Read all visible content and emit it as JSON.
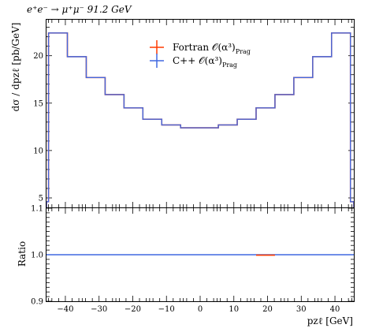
{
  "chart_data": [
    {
      "type": "line",
      "title": "e⁺e⁻ → μ⁺μ⁻ 91.2 GeV",
      "ylabel": "dσ / dpzℓ [pb/GeV]",
      "xlabel": "",
      "xlim": [
        -45.6,
        45.6
      ],
      "ylim": [
        4,
        23.8
      ],
      "yticks": [
        5,
        10,
        15,
        20
      ],
      "legend_position": "top-center",
      "x_bin_edges": [
        -45.6,
        -45.0,
        -39.4,
        -33.8,
        -28.2,
        -22.6,
        -17.0,
        -11.4,
        -5.8,
        -0.2,
        5.4,
        11.0,
        16.6,
        22.2,
        27.8,
        33.4,
        39.0,
        44.6,
        45.6
      ],
      "series": [
        {
          "name": "Fortran 𝒪(α³)Prag",
          "color": "#ff3b00",
          "values": [
            4.6,
            22.4,
            19.9,
            17.7,
            15.9,
            14.5,
            13.3,
            12.7,
            12.4,
            12.4,
            12.7,
            13.3,
            14.5,
            15.9,
            17.7,
            19.9,
            22.4,
            4.6
          ]
        },
        {
          "name": "C++ 𝒪(α³)Prag",
          "color": "#4169e1",
          "values": [
            4.6,
            22.4,
            19.9,
            17.7,
            15.9,
            14.5,
            13.3,
            12.7,
            12.4,
            12.4,
            12.7,
            13.3,
            14.5,
            15.9,
            17.7,
            19.9,
            22.4,
            4.6
          ]
        }
      ]
    },
    {
      "type": "line",
      "ylabel": "Ratio",
      "xlabel": "pzℓ [GeV]",
      "xlim": [
        -45.6,
        45.6
      ],
      "ylim": [
        0.9,
        1.1
      ],
      "yticks": [
        0.9,
        1.0,
        1.1
      ],
      "xticks": [
        -40,
        -30,
        -20,
        -10,
        0,
        10,
        20,
        30,
        40
      ],
      "series": [
        {
          "name": "Fortran 𝒪(α³)Prag",
          "color": "#ff3b00",
          "x_bin_edges": [
            16.6,
            22.2
          ],
          "values": [
            0.999
          ]
        },
        {
          "name": "C++ 𝒪(α³)Prag",
          "color": "#4169e1",
          "x_bin_edges": [
            -45.6,
            45.6
          ],
          "values": [
            1.0
          ]
        }
      ]
    }
  ],
  "labels": {
    "title": "e⁺e⁻ → μ⁺μ⁻ 91.2 GeV",
    "main_ylabel": "dσ / dpzℓ [pb/GeV]",
    "ratio_ylabel": "Ratio",
    "xlabel": "pzℓ [GeV]"
  },
  "legend": [
    {
      "label": "Fortran 𝒪(α³)",
      "subscript": "Prag",
      "color": "#ff3b00"
    },
    {
      "label": "C++ 𝒪(α³)",
      "subscript": "Prag",
      "color": "#4169e1"
    }
  ]
}
